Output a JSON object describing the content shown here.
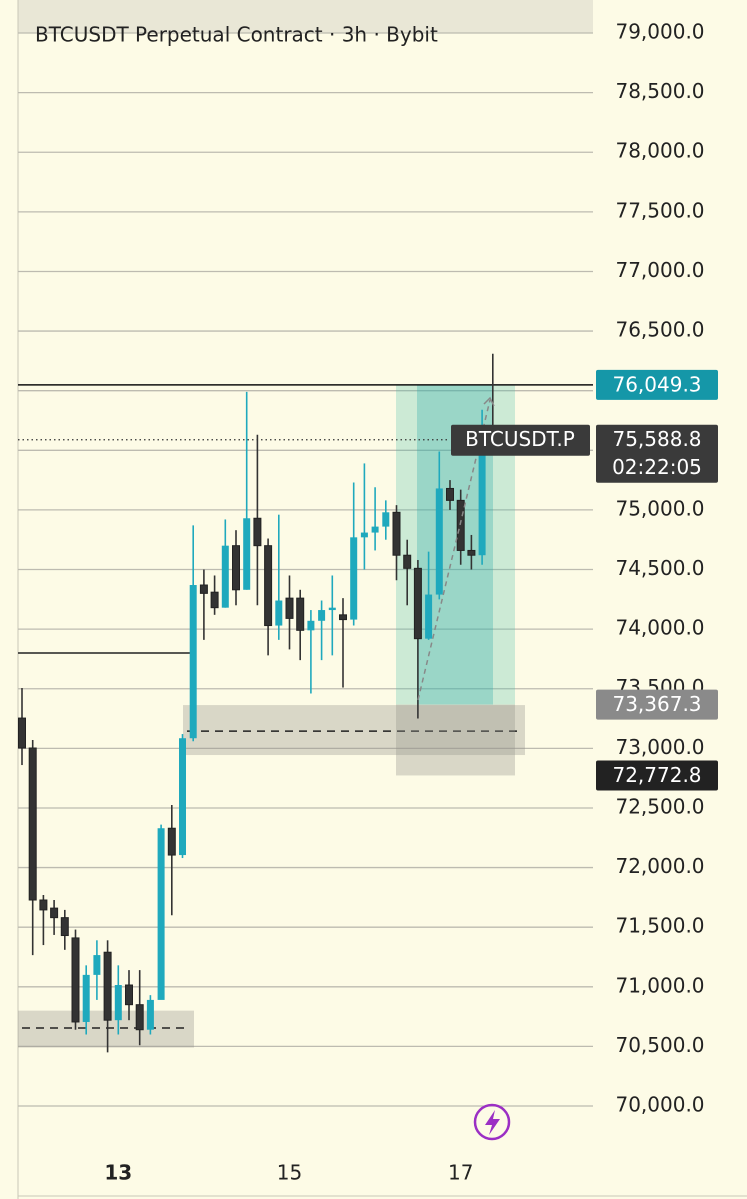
{
  "chart_data": {
    "type": "candlestick",
    "title": "BTCUSDT Perpetual Contract · 3h · Bybit",
    "categories": [
      null,
      null,
      null,
      null,
      null,
      null,
      null,
      null,
      null,
      "13",
      null,
      null,
      null,
      null,
      null,
      null,
      null,
      null,
      null,
      null,
      null,
      null,
      null,
      null,
      null,
      "15",
      null,
      null,
      null,
      null,
      null,
      null,
      null,
      null,
      null,
      null,
      null,
      null,
      null,
      null,
      null,
      "17",
      null,
      null,
      null
    ],
    "open": [
      73254,
      73003,
      71728,
      71660,
      71580,
      71410,
      70705,
      71100,
      71290,
      70720,
      71015,
      70850,
      70640,
      70890,
      72330,
      72105,
      73085,
      74370,
      74310,
      74180,
      74700,
      74330,
      74930,
      74700,
      74030,
      74260,
      74260,
      73990,
      74070,
      74160,
      74120,
      74080,
      74770,
      74810,
      74860,
      74980,
      74620,
      74510,
      73920,
      74290,
      75180,
      75080,
      74660,
      74620,
      75600
    ],
    "high": [
      73506,
      73070,
      71770,
      71728,
      71645,
      71480,
      71180,
      71390,
      71390,
      71180,
      71140,
      71140,
      70930,
      72360,
      72525,
      73120,
      74870,
      74500,
      74450,
      74920,
      74830,
      75990,
      75630,
      74760,
      74960,
      74450,
      74330,
      74160,
      74240,
      74450,
      74260,
      75230,
      75390,
      75190,
      75080,
      75040,
      74750,
      74580,
      74650,
      75490,
      75250,
      75170,
      74790,
      75840,
      76310
    ],
    "low": [
      72860,
      71266,
      71350,
      71435,
      71310,
      70640,
      70600,
      70890,
      70450,
      70600,
      70720,
      70510,
      70600,
      70930,
      71600,
      72080,
      73060,
      73910,
      74120,
      74180,
      74200,
      74330,
      74200,
      73780,
      73910,
      73830,
      73740,
      73460,
      73740,
      73780,
      73510,
      74030,
      74500,
      74660,
      74750,
      74410,
      74200,
      73250,
      73910,
      74250,
      75000,
      74540,
      74500,
      74540,
      75560
    ],
    "close": [
      73003,
      71728,
      71645,
      71580,
      71430,
      70705,
      71100,
      71266,
      70720,
      71015,
      70850,
      70640,
      70890,
      72330,
      72105,
      73085,
      74370,
      74300,
      74180,
      74700,
      74330,
      74930,
      74700,
      74030,
      74240,
      74090,
      73990,
      74070,
      74160,
      74180,
      74080,
      74770,
      74810,
      74860,
      74980,
      74620,
      74510,
      73920,
      74290,
      75180,
      75080,
      74660,
      74620,
      75590,
      75588.8
    ],
    "up_color": "#1fa9bd",
    "down_color": "#333333",
    "ylim": [
      69715,
      79277
    ],
    "yticks": [
      {
        "value": 70000,
        "label": "70,000.0"
      },
      {
        "value": 70500,
        "label": "70,500.0"
      },
      {
        "value": 71000,
        "label": "71,000.0"
      },
      {
        "value": 71500,
        "label": "71,500.0"
      },
      {
        "value": 72000,
        "label": "72,000.0"
      },
      {
        "value": 72500,
        "label": "72,500.0"
      },
      {
        "value": 73000,
        "label": "73,000.0"
      },
      {
        "value": 73500,
        "label": "73,500.0"
      },
      {
        "value": 74000,
        "label": "74,000.0"
      },
      {
        "value": 74500,
        "label": "74,500.0"
      },
      {
        "value": 75000,
        "label": "75,000.0"
      },
      {
        "value": 75500,
        "label": "75,500.0"
      },
      {
        "value": 76000,
        "label": "76,000.0"
      },
      {
        "value": 76500,
        "label": "76,500.0"
      },
      {
        "value": 77000,
        "label": "77,000.0"
      },
      {
        "value": 77500,
        "label": "77,500.0"
      },
      {
        "value": 78000,
        "label": "78,000.0"
      },
      {
        "value": 78500,
        "label": "78,500.0"
      },
      {
        "value": 79000,
        "label": "79,000.0"
      }
    ],
    "grid": true,
    "zones": [
      {
        "top": 70800,
        "bottom": 70490,
        "level": 70654
      },
      {
        "top": 73363,
        "bottom": 72944,
        "level": 73145
      }
    ],
    "support_line": 73800,
    "position": {
      "target": 76049.3,
      "entry": 73367.3,
      "stop": 72772.8
    },
    "price_labels": [
      {
        "value": 76049.3,
        "label": "76,049.3",
        "color": "#1597a8"
      },
      {
        "value": 75588.8,
        "label": "75,588.8",
        "color": "#3a3a3a"
      },
      {
        "value": 73367.3,
        "label": "73,367.3",
        "color": "#8a8a8a"
      },
      {
        "value": 72772.8,
        "label": "72,772.8",
        "color": "#222222"
      }
    ],
    "symbol_label": "BTCUSDT.P",
    "countdown": "02:22:05"
  }
}
